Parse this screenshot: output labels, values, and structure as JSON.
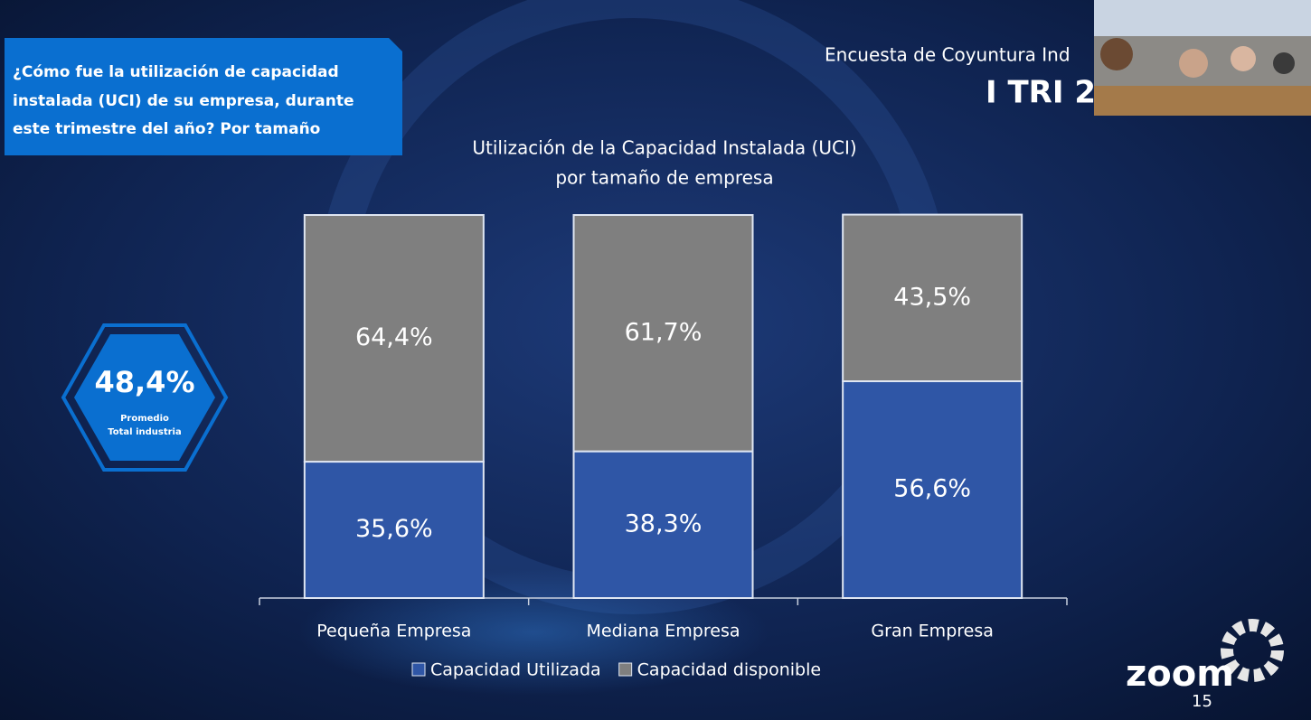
{
  "slide": {
    "question": [
      "¿Cómo fue la utilización de capacidad",
      "instalada (UCI) de su empresa, durante",
      "este trimestre del año?  Por tamaño"
    ],
    "header": "Encuesta de Coyuntura Ind",
    "period": "I TRI 2",
    "kpi": "48,4%",
    "kpi_caption": [
      "Promedio",
      "Total industria"
    ],
    "app": "zoom",
    "page": "15"
  },
  "chart_data": {
    "type": "stacked-bar",
    "title": [
      "Utilización de la Capacidad Instalada (UCI)",
      "por tamaño de empresa"
    ],
    "categories": [
      "Pequeña Empresa",
      "Mediana Empresa",
      "Gran Empresa"
    ],
    "series": [
      {
        "name": "Capacidad Utilizada",
        "color": "#2f56a6",
        "values": [
          35.6,
          38.3,
          56.6
        ],
        "value_labels": [
          "35,6%",
          "38,3%",
          "56,6%"
        ]
      },
      {
        "name": "Capacidad disponible",
        "color": "#7f7f7f",
        "values": [
          64.4,
          61.7,
          43.5
        ],
        "value_labels": [
          "64,4%",
          "61,7%",
          "43,5%"
        ]
      }
    ],
    "ylim": [
      0,
      100
    ],
    "legend": "bottom"
  }
}
